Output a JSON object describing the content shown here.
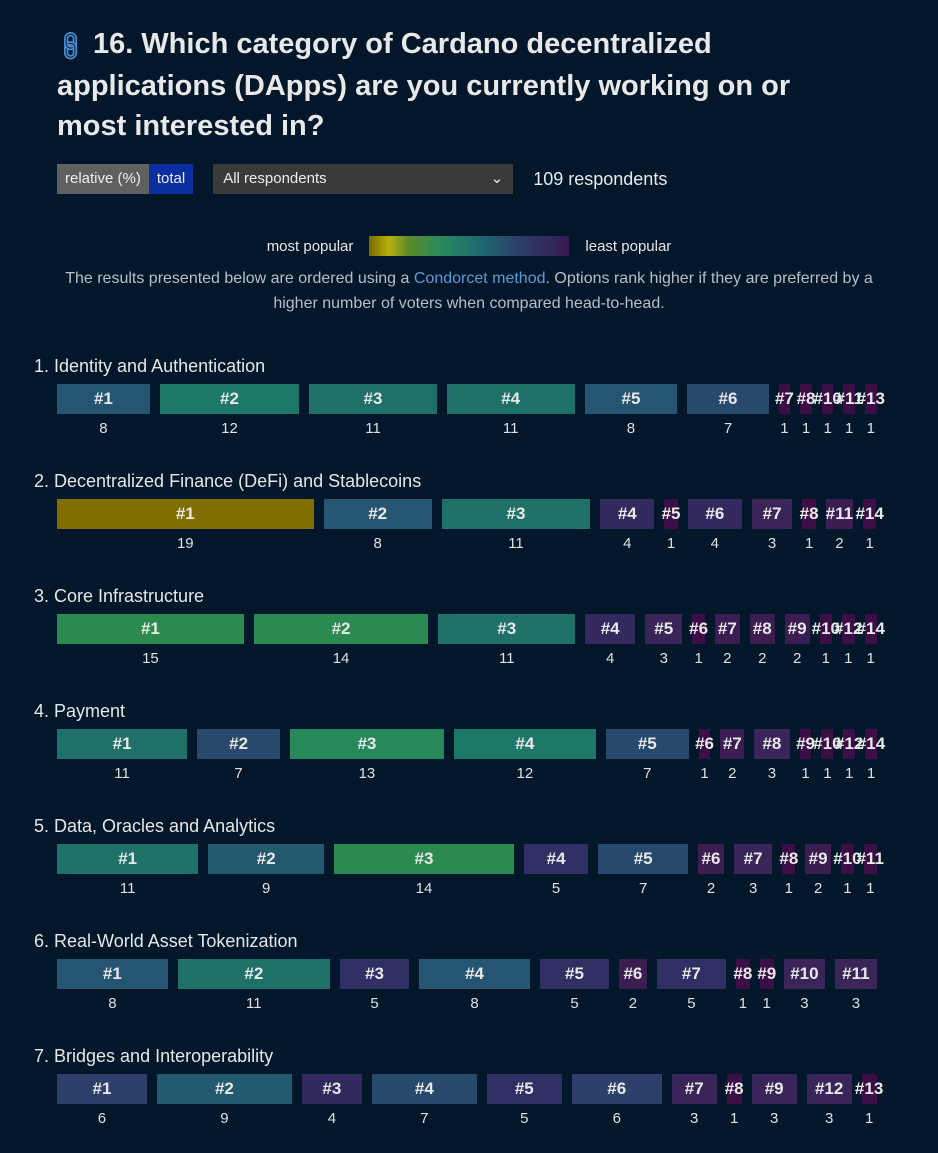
{
  "title": "16. Which category of Cardano decentralized applications (DApps) are you currently working on or most interested in?",
  "controls": {
    "relative": "relative (%)",
    "total": "total",
    "filter": "All respondents",
    "respondents": "109 respondents"
  },
  "legend": {
    "most": "most popular",
    "least": "least popular"
  },
  "desc": {
    "pre": "The results presented below are ordered using a ",
    "link": "Condorcet method",
    "post": ". Options rank higher if they are preferred by a higher number of voters when compared head-to-head."
  },
  "colors": {
    "accent": "#0b2ea0",
    "link": "#5b9bd5",
    "background": "#03172b"
  },
  "questions": [
    {
      "label": "1. Identity and Authentication",
      "ranks": [
        "#1",
        "#2",
        "#3",
        "#4",
        "#5",
        "#6",
        "#7",
        "#8",
        "#10",
        "#11",
        "#13"
      ],
      "counts": [
        8,
        12,
        11,
        11,
        8,
        7,
        1,
        1,
        1,
        1,
        1
      ]
    },
    {
      "label": "2. Decentralized Finance (DeFi) and Stablecoins",
      "ranks": [
        "#1",
        "#2",
        "#3",
        "#4",
        "#5",
        "#6",
        "#7",
        "#8",
        "#11",
        "#14"
      ],
      "counts": [
        19,
        8,
        11,
        4,
        1,
        4,
        3,
        1,
        2,
        1
      ]
    },
    {
      "label": "3. Core Infrastructure",
      "ranks": [
        "#1",
        "#2",
        "#3",
        "#4",
        "#5",
        "#6",
        "#7",
        "#8",
        "#9",
        "#10",
        "#12",
        "#14"
      ],
      "counts": [
        15,
        14,
        11,
        4,
        3,
        1,
        2,
        2,
        2,
        1,
        1,
        1
      ]
    },
    {
      "label": "4. Payment",
      "ranks": [
        "#1",
        "#2",
        "#3",
        "#4",
        "#5",
        "#6",
        "#7",
        "#8",
        "#9",
        "#10",
        "#12",
        "#14"
      ],
      "counts": [
        11,
        7,
        13,
        12,
        7,
        1,
        2,
        3,
        1,
        1,
        1,
        1
      ]
    },
    {
      "label": "5. Data, Oracles and Analytics",
      "ranks": [
        "#1",
        "#2",
        "#3",
        "#4",
        "#5",
        "#6",
        "#7",
        "#8",
        "#9",
        "#10",
        "#11"
      ],
      "counts": [
        11,
        9,
        14,
        5,
        7,
        2,
        3,
        1,
        2,
        1,
        1
      ]
    },
    {
      "label": "6. Real-World Asset Tokenization",
      "ranks": [
        "#1",
        "#2",
        "#3",
        "#4",
        "#5",
        "#6",
        "#7",
        "#8",
        "#9",
        "#10",
        "#11"
      ],
      "counts": [
        8,
        11,
        5,
        8,
        5,
        2,
        5,
        1,
        1,
        3,
        3
      ]
    },
    {
      "label": "7. Bridges and Interoperability",
      "ranks": [
        "#1",
        "#2",
        "#3",
        "#4",
        "#5",
        "#6",
        "#7",
        "#8",
        "#9",
        "#12",
        "#13"
      ],
      "counts": [
        6,
        9,
        4,
        7,
        5,
        6,
        3,
        1,
        3,
        3,
        1
      ]
    }
  ]
}
